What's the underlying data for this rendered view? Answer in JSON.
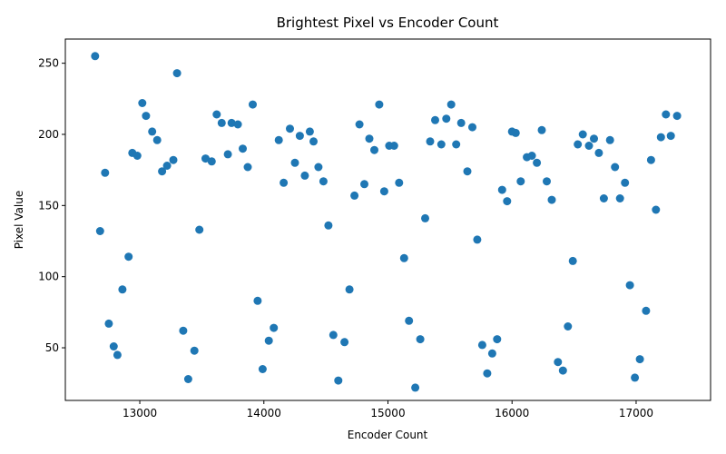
{
  "chart_data": {
    "type": "scatter",
    "title": "Brightest Pixel vs Encoder Count",
    "xlabel": "Encoder Count",
    "ylabel": "Pixel Value",
    "xlim": [
      12400,
      17600
    ],
    "ylim": [
      13,
      267
    ],
    "xticks": [
      13000,
      14000,
      15000,
      16000,
      17000
    ],
    "yticks": [
      50,
      100,
      150,
      200,
      250
    ],
    "grid": false,
    "point_color": "#1f77b4",
    "points": [
      [
        12640,
        255
      ],
      [
        12680,
        132
      ],
      [
        12720,
        173
      ],
      [
        12750,
        67
      ],
      [
        12790,
        51
      ],
      [
        12820,
        45
      ],
      [
        12860,
        91
      ],
      [
        12910,
        114
      ],
      [
        12940,
        187
      ],
      [
        12980,
        185
      ],
      [
        13020,
        222
      ],
      [
        13050,
        213
      ],
      [
        13100,
        202
      ],
      [
        13140,
        196
      ],
      [
        13180,
        174
      ],
      [
        13220,
        178
      ],
      [
        13270,
        182
      ],
      [
        13300,
        243
      ],
      [
        13350,
        62
      ],
      [
        13390,
        28
      ],
      [
        13440,
        48
      ],
      [
        13480,
        133
      ],
      [
        13530,
        183
      ],
      [
        13580,
        181
      ],
      [
        13620,
        214
      ],
      [
        13660,
        208
      ],
      [
        13710,
        186
      ],
      [
        13740,
        208
      ],
      [
        13790,
        207
      ],
      [
        13830,
        190
      ],
      [
        13870,
        177
      ],
      [
        13910,
        221
      ],
      [
        13950,
        83
      ],
      [
        13990,
        35
      ],
      [
        14040,
        55
      ],
      [
        14080,
        64
      ],
      [
        14120,
        196
      ],
      [
        14160,
        166
      ],
      [
        14210,
        204
      ],
      [
        14250,
        180
      ],
      [
        14290,
        199
      ],
      [
        14330,
        171
      ],
      [
        14370,
        202
      ],
      [
        14400,
        195
      ],
      [
        14440,
        177
      ],
      [
        14480,
        167
      ],
      [
        14520,
        136
      ],
      [
        14560,
        59
      ],
      [
        14600,
        27
      ],
      [
        14650,
        54
      ],
      [
        14690,
        91
      ],
      [
        14730,
        157
      ],
      [
        14770,
        207
      ],
      [
        14810,
        165
      ],
      [
        14850,
        197
      ],
      [
        14890,
        189
      ],
      [
        14930,
        221
      ],
      [
        14970,
        160
      ],
      [
        15010,
        192
      ],
      [
        15050,
        192
      ],
      [
        15090,
        166
      ],
      [
        15130,
        113
      ],
      [
        15170,
        69
      ],
      [
        15220,
        22
      ],
      [
        15260,
        56
      ],
      [
        15300,
        141
      ],
      [
        15340,
        195
      ],
      [
        15380,
        210
      ],
      [
        15430,
        193
      ],
      [
        15470,
        211
      ],
      [
        15510,
        221
      ],
      [
        15550,
        193
      ],
      [
        15590,
        208
      ],
      [
        15640,
        174
      ],
      [
        15680,
        205
      ],
      [
        15720,
        126
      ],
      [
        15760,
        52
      ],
      [
        15800,
        32
      ],
      [
        15840,
        46
      ],
      [
        15880,
        56
      ],
      [
        15920,
        161
      ],
      [
        15960,
        153
      ],
      [
        16000,
        202
      ],
      [
        16030,
        201
      ],
      [
        16070,
        167
      ],
      [
        16120,
        184
      ],
      [
        16160,
        185
      ],
      [
        16200,
        180
      ],
      [
        16240,
        203
      ],
      [
        16280,
        167
      ],
      [
        16320,
        154
      ],
      [
        16370,
        40
      ],
      [
        16410,
        34
      ],
      [
        16450,
        65
      ],
      [
        16490,
        111
      ],
      [
        16530,
        193
      ],
      [
        16570,
        200
      ],
      [
        16620,
        192
      ],
      [
        16660,
        197
      ],
      [
        16700,
        187
      ],
      [
        16740,
        155
      ],
      [
        16790,
        196
      ],
      [
        16830,
        177
      ],
      [
        16870,
        155
      ],
      [
        16910,
        166
      ],
      [
        16950,
        94
      ],
      [
        16990,
        29
      ],
      [
        17030,
        42
      ],
      [
        17080,
        76
      ],
      [
        17120,
        182
      ],
      [
        17160,
        147
      ],
      [
        17200,
        198
      ],
      [
        17240,
        214
      ],
      [
        17280,
        199
      ],
      [
        17330,
        213
      ]
    ]
  }
}
